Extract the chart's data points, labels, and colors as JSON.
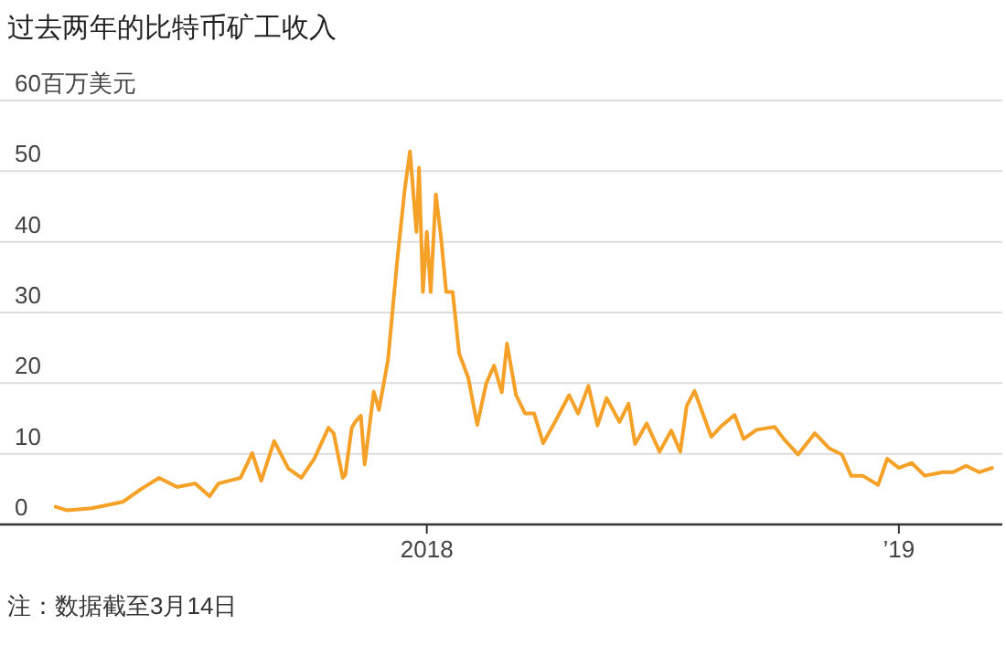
{
  "chart_data": {
    "type": "line",
    "title": "过去两年的比特币矿工收入",
    "x": [
      "2017-03-20",
      "2017-03-29",
      "2017-04-17",
      "2017-05-11",
      "2017-05-25",
      "2017-06-08",
      "2017-06-22",
      "2017-07-06",
      "2017-07-17",
      "2017-07-24",
      "2017-08-10",
      "2017-08-19",
      "2017-08-26",
      "2017-09-05",
      "2017-09-16",
      "2017-09-26",
      "2017-10-06",
      "2017-10-17",
      "2017-10-21",
      "2017-10-28",
      "2017-10-30",
      "2017-11-04",
      "2017-11-07",
      "2017-11-11",
      "2017-11-14",
      "2017-11-21",
      "2017-11-25",
      "2017-12-02",
      "2017-12-09",
      "2017-12-15",
      "2017-12-19",
      "2017-12-24",
      "2017-12-26",
      "2017-12-29",
      "2018-01-01",
      "2018-01-04",
      "2018-01-08",
      "2018-01-12",
      "2018-01-16",
      "2018-01-21",
      "2018-01-26",
      "2018-02-02",
      "2018-02-09",
      "2018-02-16",
      "2018-02-22",
      "2018-02-28",
      "2018-03-04",
      "2018-03-11",
      "2018-03-18",
      "2018-03-25",
      "2018-04-01",
      "2018-04-11",
      "2018-04-21",
      "2018-04-28",
      "2018-05-06",
      "2018-05-13",
      "2018-05-20",
      "2018-05-30",
      "2018-06-06",
      "2018-06-11",
      "2018-06-13",
      "2018-06-20",
      "2018-06-30",
      "2018-07-09",
      "2018-07-16",
      "2018-07-21",
      "2018-07-27",
      "2018-08-02",
      "2018-08-09",
      "2018-08-16",
      "2018-08-27",
      "2018-09-03",
      "2018-09-13",
      "2018-09-27",
      "2018-10-04",
      "2018-10-15",
      "2018-10-28",
      "2018-11-08",
      "2018-11-18",
      "2018-11-25",
      "2018-12-04",
      "2018-12-16",
      "2018-12-23",
      "2019-01-01",
      "2019-01-11",
      "2019-01-21",
      "2019-02-04",
      "2019-02-12",
      "2019-02-22",
      "2019-03-04",
      "2019-03-14"
    ],
    "series": [
      {
        "color": "#f5a128",
        "values": [
          2.5,
          2.0,
          2.3,
          3.2,
          5.0,
          6.6,
          5.3,
          5.8,
          4.0,
          5.8,
          6.6,
          10.1,
          6.2,
          11.8,
          7.9,
          6.6,
          9.3,
          13.7,
          12.9,
          6.6,
          7.0,
          13.7,
          14.6,
          15.4,
          8.5,
          18.8,
          16.2,
          23.3,
          37.1,
          47.5,
          52.8,
          41.4,
          50.5,
          32.9,
          41.4,
          32.9,
          46.7,
          40.6,
          32.9,
          32.9,
          24.2,
          20.8,
          14.1,
          20.0,
          22.5,
          18.7,
          25.6,
          18.3,
          15.7,
          15.7,
          11.5,
          14.8,
          18.3,
          15.7,
          19.6,
          14.0,
          17.9,
          14.5,
          17.1,
          11.4,
          12.0,
          14.3,
          10.3,
          13.3,
          10.3,
          16.8,
          18.9,
          15.9,
          12.4,
          13.8,
          15.5,
          12.1,
          13.4,
          13.8,
          12.1,
          9.9,
          12.9,
          10.8,
          9.9,
          6.9,
          6.9,
          5.6,
          9.3,
          8.0,
          8.7,
          6.9,
          7.4,
          7.4,
          8.3,
          7.4,
          8.0
        ]
      }
    ],
    "xlim": [
      "2017-02-05",
      "2019-03-22"
    ],
    "xticks": [
      {
        "value": "2018-01-01",
        "label": "2018"
      },
      {
        "value": "2019-01-01",
        "label": "’19"
      }
    ],
    "ylim": [
      0,
      60
    ],
    "yticks": [
      0,
      10,
      20,
      30,
      40,
      50,
      {
        "value": 60,
        "label": "60百万美元"
      }
    ],
    "grid": "y",
    "annotations": [
      "注：数据截至3月14日"
    ]
  }
}
